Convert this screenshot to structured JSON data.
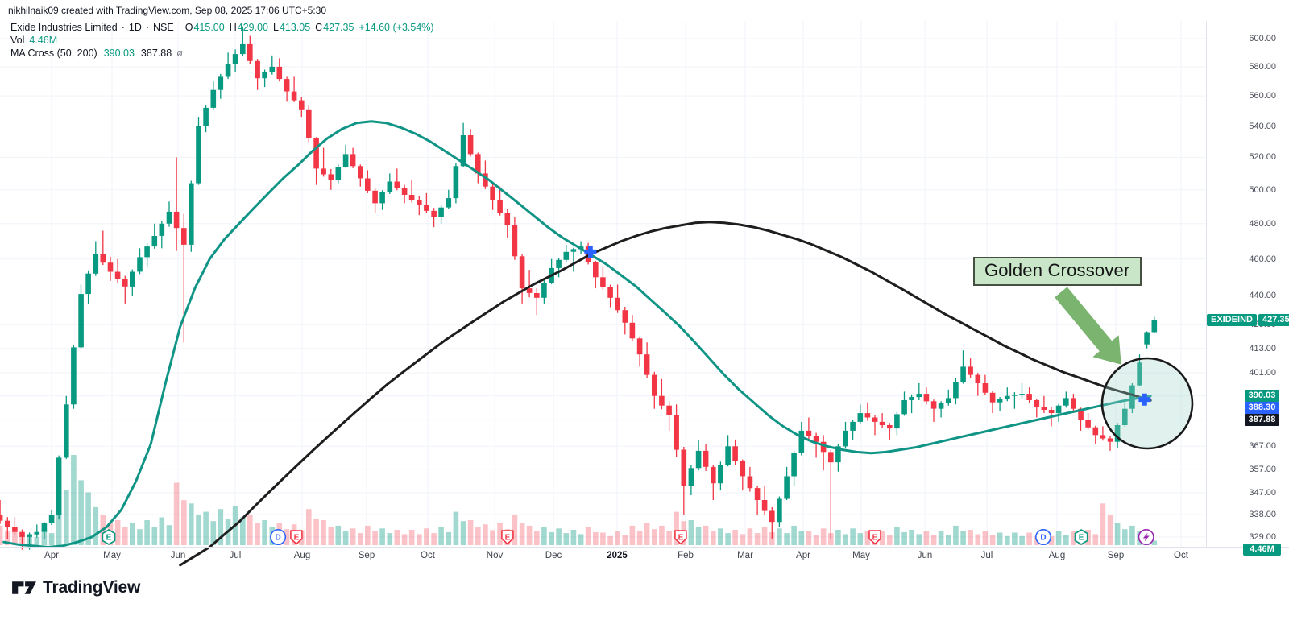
{
  "attribution": "nikhilnaik09 created with TradingView.com, Sep 08, 2025 17:06 UTC+5:30",
  "legend": {
    "title": "Exide Industries Limited",
    "dot": "·",
    "timeframe": "1D",
    "exchange": "NSE",
    "o_label": "O",
    "o": "415.00",
    "h_label": "H",
    "h": "429.00",
    "l_label": "L",
    "l": "413.05",
    "c_label": "C",
    "c": "427.35",
    "change": "+14.60 (+3.54%)",
    "vol_label": "Vol",
    "vol_value": "4.46M",
    "ma_label": "MA Cross (50, 200)",
    "ma50_value": "390.03",
    "ma200_value": "387.88",
    "ma_suffix": "ø"
  },
  "annotation": {
    "label": "Golden Crossover"
  },
  "logo": {
    "text": "TradingView"
  },
  "price_axis": {
    "ticks": [
      600,
      580,
      560,
      540,
      520,
      500,
      480,
      460,
      440,
      425,
      413,
      401,
      390,
      379,
      367,
      357,
      347,
      338,
      329
    ],
    "last_price_badge": {
      "symbol": "EXIDEIND",
      "value": "427.35",
      "price": 427.35
    },
    "ma_badges": [
      {
        "value": "390.03",
        "color_key": "badge_teal",
        "price": 390.03
      },
      {
        "value": "388.30",
        "color_key": "badge_blue"
      },
      {
        "value": "387.88",
        "color_key": "badge_black"
      }
    ],
    "volume_badge": {
      "value": "4.46M"
    }
  },
  "time_axis": {
    "labels": [
      {
        "text": "Apr",
        "week": 3.25
      },
      {
        "text": "May",
        "week": 7.36
      },
      {
        "text": "Jun",
        "week": 11.85
      },
      {
        "text": "Jul",
        "week": 15.74
      },
      {
        "text": "Aug",
        "week": 20.29
      },
      {
        "text": "Sep",
        "week": 24.67
      },
      {
        "text": "Oct",
        "week": 28.84
      },
      {
        "text": "Nov",
        "week": 33.39
      },
      {
        "text": "Dec",
        "week": 37.39
      },
      {
        "text": "2025",
        "week": 41.71,
        "year": true
      },
      {
        "text": "Feb",
        "week": 46.37
      },
      {
        "text": "Mar",
        "week": 50.43
      },
      {
        "text": "Apr",
        "week": 54.37
      },
      {
        "text": "May",
        "week": 58.32
      },
      {
        "text": "Jun",
        "week": 62.65
      },
      {
        "text": "Jul",
        "week": 66.87
      },
      {
        "text": "Aug",
        "week": 71.63
      },
      {
        "text": "Sep",
        "week": 75.63
      },
      {
        "text": "Oct",
        "week": 80.07
      }
    ]
  },
  "chart_data": {
    "type": "candlestick",
    "symbol": "EXIDEIND",
    "name": "Exide Industries Limited",
    "exchange": "NSE",
    "interval": "1D",
    "scale": "log",
    "ylim": [
      325,
      612
    ],
    "last_bar": {
      "open": 415.0,
      "high": 429.0,
      "low": 413.05,
      "close": 427.35,
      "change": 14.6,
      "change_pct": 3.54,
      "volume": "4.46M"
    },
    "indicator": {
      "name": "MA Cross",
      "fast": 50,
      "slow": 200,
      "ma50_last": 390.03,
      "ma200_last": 387.88,
      "cross_value": 388.3
    },
    "granularity_note": "weekly OHLCV approximation read from the daily chart pixels",
    "week0": "2024-03-11",
    "candles": [
      [
        338,
        344,
        328,
        333,
        14
      ],
      [
        333,
        337,
        324,
        329,
        10
      ],
      [
        329,
        334,
        324,
        331,
        8
      ],
      [
        331,
        340,
        328,
        338,
        12
      ],
      [
        338,
        390,
        336,
        386,
        55
      ],
      [
        386,
        446,
        384,
        441,
        65
      ],
      [
        441,
        470,
        436,
        463,
        38
      ],
      [
        463,
        476,
        448,
        453,
        22
      ],
      [
        453,
        460,
        436,
        445,
        18
      ],
      [
        445,
        466,
        440,
        461,
        16
      ],
      [
        461,
        480,
        456,
        473,
        18
      ],
      [
        473,
        493,
        466,
        487,
        20
      ],
      [
        487,
        520,
        416,
        468,
        45
      ],
      [
        468,
        546,
        464,
        540,
        30
      ],
      [
        540,
        570,
        536,
        564,
        24
      ],
      [
        564,
        590,
        558,
        582,
        26
      ],
      [
        582,
        609,
        576,
        596,
        28
      ],
      [
        596,
        602,
        564,
        572,
        22
      ],
      [
        572,
        588,
        566,
        580,
        18
      ],
      [
        580,
        586,
        556,
        563,
        16
      ],
      [
        563,
        573,
        546,
        551,
        15
      ],
      [
        551,
        554,
        503,
        513,
        26
      ],
      [
        513,
        526,
        500,
        506,
        18
      ],
      [
        506,
        528,
        504,
        522,
        14
      ],
      [
        522,
        526,
        502,
        507,
        12
      ],
      [
        507,
        512,
        486,
        492,
        14
      ],
      [
        492,
        510,
        488,
        505,
        12
      ],
      [
        505,
        513,
        492,
        497,
        11
      ],
      [
        497,
        506,
        485,
        491,
        11
      ],
      [
        491,
        498,
        478,
        484,
        12
      ],
      [
        484,
        500,
        480,
        495,
        13
      ],
      [
        495,
        542,
        492,
        534,
        24
      ],
      [
        534,
        538,
        504,
        510,
        18
      ],
      [
        510,
        518,
        488,
        494,
        15
      ],
      [
        494,
        502,
        472,
        479,
        16
      ],
      [
        479,
        484,
        436,
        444,
        22
      ],
      [
        444,
        454,
        430,
        439,
        14
      ],
      [
        439,
        460,
        436,
        455,
        13
      ],
      [
        455,
        468,
        450,
        464,
        12
      ],
      [
        464,
        470,
        453,
        467,
        11
      ],
      [
        467,
        469,
        444,
        450,
        13
      ],
      [
        450,
        456,
        434,
        439,
        9
      ],
      [
        439,
        446,
        420,
        426,
        10
      ],
      [
        426,
        430,
        404,
        410,
        14
      ],
      [
        410,
        416,
        384,
        390,
        16
      ],
      [
        390,
        398,
        374,
        381,
        14
      ],
      [
        381,
        386,
        338,
        350,
        24
      ],
      [
        350,
        370,
        346,
        365,
        18
      ],
      [
        365,
        368,
        344,
        351,
        14
      ],
      [
        351,
        372,
        348,
        367,
        12
      ],
      [
        367,
        370,
        348,
        354,
        11
      ],
      [
        354,
        358,
        338,
        344,
        12
      ],
      [
        344,
        350,
        328,
        335,
        13
      ],
      [
        335,
        358,
        333,
        354,
        12
      ],
      [
        354,
        378,
        350,
        374,
        14
      ],
      [
        374,
        380,
        362,
        369,
        10
      ],
      [
        369,
        372,
        328,
        360,
        12
      ],
      [
        360,
        378,
        356,
        374,
        11
      ],
      [
        374,
        386,
        370,
        382,
        12
      ],
      [
        382,
        387,
        372,
        378,
        10
      ],
      [
        378,
        382,
        370,
        375,
        10
      ],
      [
        375,
        392,
        372,
        388,
        13
      ],
      [
        388,
        396,
        382,
        391,
        11
      ],
      [
        391,
        394,
        378,
        384,
        10
      ],
      [
        384,
        393,
        380,
        389,
        10
      ],
      [
        389,
        412,
        386,
        404,
        14
      ],
      [
        404,
        408,
        390,
        396,
        11
      ],
      [
        396,
        400,
        382,
        387,
        10
      ],
      [
        387,
        394,
        383,
        390,
        9
      ],
      [
        390,
        396,
        384,
        391,
        9
      ],
      [
        391,
        394,
        380,
        385,
        9
      ],
      [
        385,
        390,
        376,
        382,
        9
      ],
      [
        382,
        392,
        378,
        389,
        10
      ],
      [
        389,
        391,
        374,
        379,
        10
      ],
      [
        379,
        382,
        368,
        372,
        11
      ],
      [
        372,
        376,
        365,
        369,
        30
      ],
      [
        369,
        388,
        366,
        384,
        16
      ],
      [
        384,
        410,
        382,
        406,
        14
      ],
      [
        415,
        429,
        413.05,
        427.35,
        4.46
      ]
    ],
    "ma50": [
      327,
      326,
      325.5,
      325,
      325.5,
      327,
      329,
      333,
      340,
      352,
      368,
      396,
      424,
      444,
      460,
      471,
      480,
      489,
      498,
      507,
      515,
      524,
      532,
      538,
      542,
      543,
      542,
      539,
      535,
      530,
      524,
      518,
      512,
      506,
      499,
      492,
      485,
      478,
      472,
      467,
      462,
      457,
      451,
      445,
      438,
      431,
      424,
      416,
      408,
      400,
      393,
      387,
      381,
      376,
      372,
      369,
      367,
      365.5,
      364.5,
      364,
      364.5,
      365.5,
      366.5,
      368,
      369.5,
      371,
      372.5,
      374,
      375.5,
      377,
      378.5,
      380,
      381.5,
      383,
      384.5,
      386,
      387.5,
      388.8,
      390.03
    ],
    "ma200": [
      null,
      null,
      null,
      null,
      null,
      null,
      null,
      null,
      null,
      null,
      null,
      null,
      318,
      321.5,
      325,
      330,
      335,
      341,
      347,
      353,
      359,
      365,
      371,
      377,
      383,
      389,
      395,
      400.5,
      406,
      411.5,
      417,
      422,
      427,
      432,
      437,
      441.5,
      446,
      450,
      454,
      458.5,
      463,
      466.5,
      470,
      473,
      475.5,
      477.5,
      479,
      480.5,
      481,
      480.5,
      479.5,
      478,
      476,
      473.5,
      471,
      468,
      464.5,
      461,
      457,
      453,
      448.5,
      444,
      439.5,
      435,
      430.5,
      426.5,
      422.5,
      418.5,
      414.5,
      411,
      407.5,
      404.5,
      401.5,
      399,
      396.5,
      394,
      392,
      390,
      387.88
    ],
    "crosses": [
      {
        "name": "death-cross",
        "week": 39.9,
        "price": 464
      },
      {
        "name": "golden-cross",
        "week": 77.6,
        "price": 388.3
      }
    ],
    "events": [
      {
        "glyph": "E",
        "kind": "earnings-upcoming",
        "shape": "hexagon",
        "week": 7.14
      },
      {
        "glyph": "D",
        "kind": "dividend",
        "shape": "circle",
        "week": 18.65
      },
      {
        "glyph": "E",
        "kind": "earnings",
        "shape": "shield",
        "week": 19.9
      },
      {
        "glyph": "E",
        "kind": "earnings",
        "shape": "shield",
        "week": 34.26
      },
      {
        "glyph": "E",
        "kind": "earnings",
        "shape": "shield",
        "week": 46.04
      },
      {
        "glyph": "E",
        "kind": "earnings",
        "shape": "shield",
        "week": 59.25
      },
      {
        "glyph": "D",
        "kind": "dividend",
        "shape": "circle",
        "week": 70.7
      },
      {
        "glyph": "E",
        "kind": "earnings-upcoming",
        "shape": "hexagon",
        "week": 73.28
      },
      {
        "glyph": "⚡",
        "kind": "event",
        "shape": "circle-lightning",
        "week": 77.7
      }
    ],
    "highlight_circle": {
      "week": 77.77,
      "price": 386.5,
      "radius_px": 56
    },
    "arrow": {
      "from_week": 71.9,
      "from_price": 442,
      "to_week": 76.0,
      "to_price": 405
    },
    "price_line": {
      "price": 427.35,
      "style": "dotted"
    }
  },
  "colors": {
    "up": "#089981",
    "down": "#f23645",
    "volume_up": "rgba(8,153,129,0.38)",
    "volume_down": "rgba(242,54,69,0.30)",
    "ma50": "#0f9486",
    "ma200": "#1e1e1e",
    "cross_marker_blue": "#2962ff",
    "badge_teal": "#089981",
    "badge_blue": "#2962ff",
    "badge_black": "#131722",
    "earnings_teal": "#089981",
    "earnings_red": "#f23645",
    "dividend_blue": "#2962ff",
    "event_purple": "#9c27b0",
    "annotation_bg": "#c9e6c8",
    "annotation_border": "#474f43",
    "arrow_green": "#6fae63",
    "circle_fill": "rgba(163,214,201,0.32)",
    "circle_stroke": "#1a1a1a",
    "grid": "#f0f3fa",
    "axis_border": "#e0e3eb",
    "axis_text": "#4a4e59",
    "text": "#131722",
    "value_green": "#089981",
    "muted": "#787b86"
  }
}
